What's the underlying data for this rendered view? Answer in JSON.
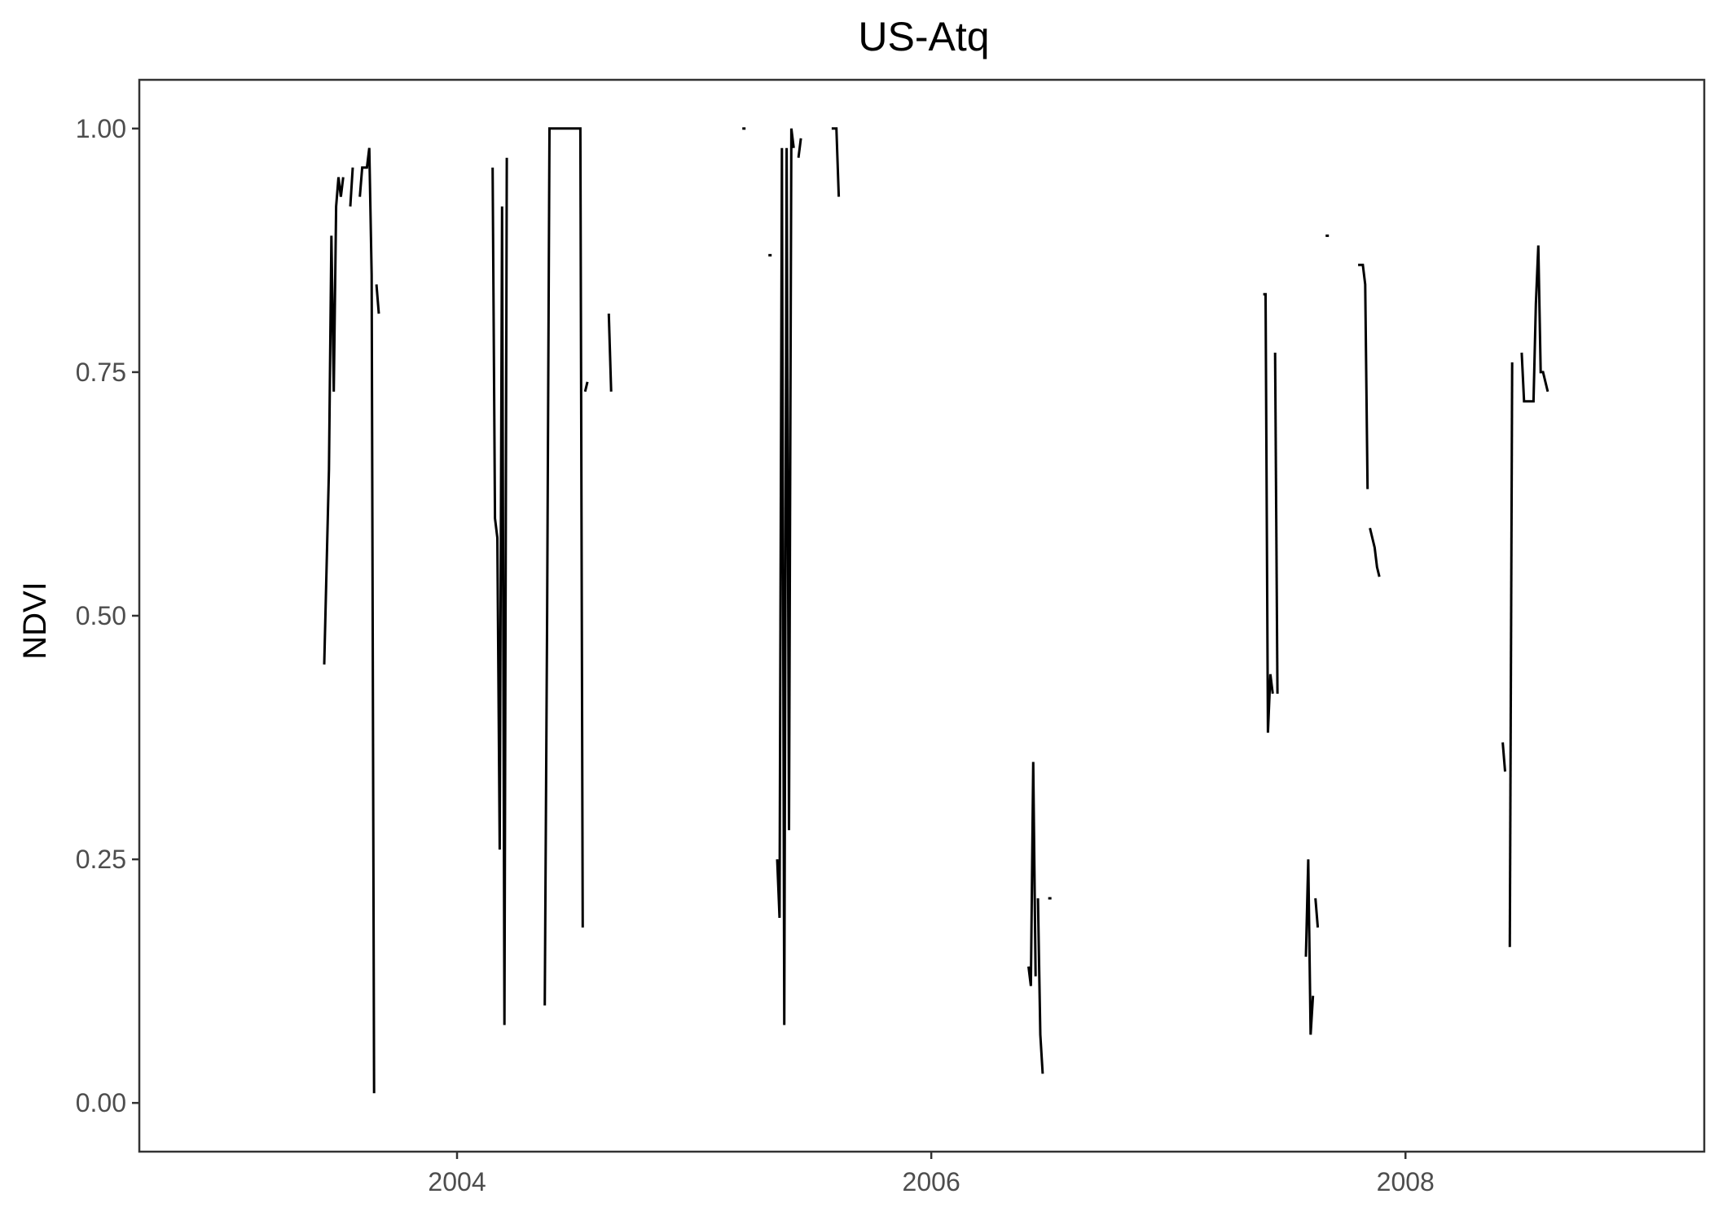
{
  "chart_data": {
    "type": "line",
    "title": "US-Atq",
    "xlabel": "",
    "ylabel": "NDVI",
    "xlim": [
      2002.66,
      2009.26
    ],
    "ylim": [
      -0.05,
      1.05
    ],
    "x_ticks": [
      2004,
      2006,
      2008
    ],
    "x_tick_labels": [
      "2004",
      "2006",
      "2008"
    ],
    "y_ticks": [
      0,
      0.25,
      0.5,
      0.75,
      1.0
    ],
    "y_tick_labels": [
      "0.00",
      "0.25",
      "0.50",
      "0.75",
      "1.00"
    ],
    "grid": false,
    "line_color": "#000000",
    "series": [
      {
        "values": [
          [
            2003.44,
            0.45
          ],
          [
            2003.45,
            0.55
          ],
          [
            2003.46,
            0.65
          ],
          [
            2003.47,
            0.89
          ],
          [
            2003.48,
            0.73
          ],
          [
            2003.49,
            0.92
          ],
          [
            2003.5,
            0.95
          ],
          [
            2003.51,
            0.93
          ],
          [
            2003.52,
            0.95
          ]
        ]
      },
      {
        "values": [
          [
            2003.55,
            0.92
          ],
          [
            2003.56,
            0.96
          ]
        ]
      },
      {
        "values": [
          [
            2003.59,
            0.93
          ],
          [
            2003.6,
            0.96
          ],
          [
            2003.62,
            0.96
          ],
          [
            2003.63,
            0.98
          ],
          [
            2003.64,
            0.85
          ],
          [
            2003.65,
            0.01
          ]
        ]
      },
      {
        "values": [
          [
            2003.66,
            0.84
          ],
          [
            2003.67,
            0.81
          ]
        ]
      },
      {
        "values": [
          [
            2004.15,
            0.96
          ],
          [
            2004.16,
            0.6
          ],
          [
            2004.17,
            0.58
          ],
          [
            2004.18,
            0.26
          ],
          [
            2004.19,
            0.92
          ],
          [
            2004.2,
            0.08
          ],
          [
            2004.21,
            0.97
          ]
        ]
      },
      {
        "values": [
          [
            2004.37,
            0.1
          ],
          [
            2004.38,
            0.5
          ],
          [
            2004.39,
            1.0
          ],
          [
            2004.52,
            1.0
          ],
          [
            2004.53,
            0.18
          ]
        ]
      },
      {
        "values": [
          [
            2004.54,
            0.73
          ],
          [
            2004.55,
            0.74
          ]
        ]
      },
      {
        "values": [
          [
            2004.64,
            0.81
          ],
          [
            2004.65,
            0.73
          ]
        ]
      },
      {
        "values": [
          [
            2005.21,
            1.0
          ]
        ]
      },
      {
        "values": [
          [
            2005.32,
            0.87
          ]
        ]
      },
      {
        "values": [
          [
            2005.35,
            0.25
          ],
          [
            2005.36,
            0.19
          ],
          [
            2005.37,
            0.98
          ],
          [
            2005.38,
            0.08
          ],
          [
            2005.39,
            0.98
          ],
          [
            2005.4,
            0.28
          ],
          [
            2005.41,
            1.0
          ],
          [
            2005.42,
            0.98
          ]
        ]
      },
      {
        "values": [
          [
            2005.44,
            0.97
          ],
          [
            2005.45,
            0.99
          ]
        ]
      },
      {
        "values": [
          [
            2005.58,
            1.0
          ],
          [
            2005.6,
            1.0
          ],
          [
            2005.61,
            0.93
          ]
        ]
      },
      {
        "values": [
          [
            2006.41,
            0.14
          ],
          [
            2006.42,
            0.12
          ],
          [
            2006.43,
            0.35
          ],
          [
            2006.44,
            0.13
          ]
        ]
      },
      {
        "values": [
          [
            2006.45,
            0.21
          ],
          [
            2006.46,
            0.07
          ],
          [
            2006.47,
            0.03
          ]
        ]
      },
      {
        "values": [
          [
            2006.5,
            0.21
          ]
        ]
      },
      {
        "values": [
          [
            2007.4,
            0.83
          ],
          [
            2007.41,
            0.83
          ],
          [
            2007.42,
            0.38
          ],
          [
            2007.43,
            0.44
          ],
          [
            2007.44,
            0.42
          ]
        ]
      },
      {
        "values": [
          [
            2007.45,
            0.77
          ],
          [
            2007.46,
            0.42
          ]
        ]
      },
      {
        "values": [
          [
            2007.58,
            0.15
          ],
          [
            2007.59,
            0.25
          ],
          [
            2007.6,
            0.07
          ],
          [
            2007.61,
            0.11
          ]
        ]
      },
      {
        "values": [
          [
            2007.62,
            0.21
          ],
          [
            2007.63,
            0.18
          ]
        ]
      },
      {
        "values": [
          [
            2007.67,
            0.89
          ]
        ]
      },
      {
        "values": [
          [
            2007.8,
            0.86
          ],
          [
            2007.82,
            0.86
          ],
          [
            2007.83,
            0.84
          ],
          [
            2007.84,
            0.63
          ]
        ]
      },
      {
        "values": [
          [
            2007.85,
            0.59
          ],
          [
            2007.87,
            0.57
          ],
          [
            2007.88,
            0.55
          ],
          [
            2007.89,
            0.54
          ]
        ]
      },
      {
        "values": [
          [
            2008.41,
            0.37
          ],
          [
            2008.42,
            0.34
          ]
        ]
      },
      {
        "values": [
          [
            2008.44,
            0.16
          ],
          [
            2008.45,
            0.76
          ]
        ]
      },
      {
        "values": [
          [
            2008.49,
            0.77
          ],
          [
            2008.5,
            0.72
          ],
          [
            2008.54,
            0.72
          ],
          [
            2008.55,
            0.82
          ],
          [
            2008.56,
            0.88
          ],
          [
            2008.57,
            0.75
          ],
          [
            2008.58,
            0.75
          ],
          [
            2008.59,
            0.74
          ],
          [
            2008.6,
            0.73
          ]
        ]
      }
    ]
  }
}
